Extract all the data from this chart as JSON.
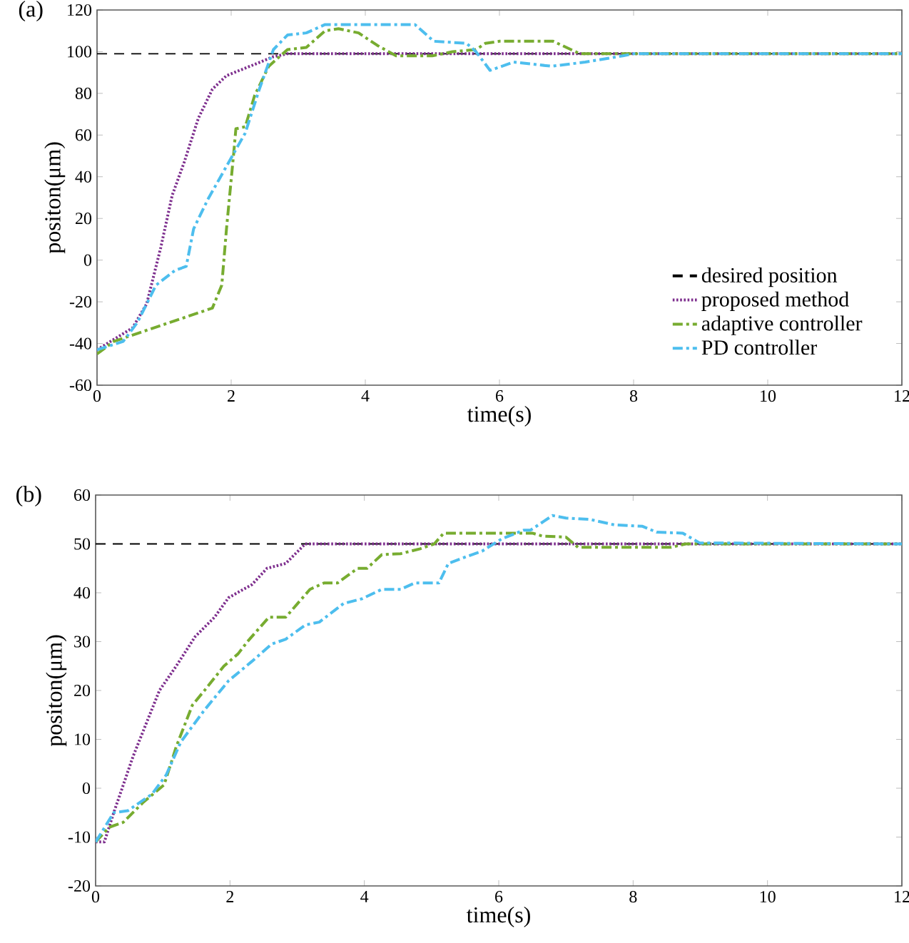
{
  "chart_data": [
    {
      "type": "line",
      "title": "(a)",
      "xlabel": "time(s)",
      "ylabel": "positon(μm)",
      "xlim": [
        0,
        12
      ],
      "ylim": [
        -60,
        120
      ],
      "xticks": [
        0,
        2,
        4,
        6,
        8,
        10,
        12
      ],
      "yticks": [
        -60,
        -40,
        -20,
        0,
        20,
        40,
        60,
        80,
        100,
        120
      ],
      "legend": "bottom right",
      "grid": false,
      "series": [
        {
          "name": "desired position",
          "color": "#000000",
          "line_style": "dashed",
          "x": [
            0,
            12
          ],
          "values": [
            99,
            99
          ]
        },
        {
          "name": "proposed method",
          "color": "#7e2f8e",
          "line_style": "dotted",
          "x": [
            0,
            0.53,
            0.74,
            0.95,
            1.12,
            1.3,
            1.51,
            1.72,
            1.93,
            2.28,
            2.63,
            2.84,
            12
          ],
          "values": [
            -43,
            -32.5,
            -21,
            6,
            31,
            47,
            68,
            82,
            88.5,
            93,
            97.6,
            99,
            99
          ]
        },
        {
          "name": "adaptive controller",
          "color": "#77ac30",
          "line_style": "dashdot",
          "x": [
            0,
            0.25,
            1.72,
            1.86,
            1.93,
            2.04,
            2.07,
            2.21,
            2.35,
            2.56,
            2.84,
            3.12,
            3.4,
            3.6,
            3.9,
            4.18,
            4.46,
            5.0,
            5.3,
            5.65,
            5.79,
            6.0,
            6.8,
            7.2,
            12
          ],
          "values": [
            -45,
            -39,
            -23,
            -12,
            15,
            52,
            63,
            64,
            79,
            93,
            101,
            102,
            110,
            111,
            109,
            103,
            98,
            98,
            100,
            101,
            104,
            105,
            105,
            99,
            99
          ]
        },
        {
          "name": "PD controller",
          "color": "#4dbeee",
          "line_style": "dashdot",
          "x": [
            0,
            0.39,
            0.6,
            0.88,
            1.16,
            1.33,
            1.44,
            1.65,
            1.93,
            2.21,
            2.42,
            2.63,
            2.84,
            3.12,
            3.4,
            4.74,
            5.02,
            5.51,
            5.65,
            5.86,
            6.21,
            6.78,
            7.28,
            7.84,
            8.0,
            12
          ],
          "values": [
            -43,
            -39,
            -30,
            -12,
            -5,
            -3,
            15,
            29,
            45,
            61,
            82,
            101,
            108,
            109,
            113,
            113,
            105,
            104,
            100,
            91,
            95,
            93,
            95,
            98,
            99,
            99
          ]
        }
      ]
    },
    {
      "type": "line",
      "title": "(b)",
      "xlabel": "time(s)",
      "ylabel": "positon(μm)",
      "xlim": [
        0,
        12
      ],
      "ylim": [
        -20,
        60
      ],
      "xticks": [
        0,
        2,
        4,
        6,
        8,
        10,
        12
      ],
      "yticks": [
        -20,
        -10,
        0,
        10,
        20,
        30,
        40,
        50,
        60
      ],
      "grid": false,
      "series": [
        {
          "color": "#000000",
          "line_style": "dashed",
          "x": [
            0,
            12
          ],
          "values": [
            50,
            50
          ]
        },
        {
          "color": "#7e2f8e",
          "line_style": "dotted",
          "x": [
            0,
            0.13,
            0.27,
            0.56,
            0.95,
            1.2,
            1.48,
            1.77,
            1.98,
            2.33,
            2.55,
            2.83,
            3.12,
            12
          ],
          "values": [
            -11,
            -11,
            -5,
            6.6,
            20,
            25,
            31,
            35,
            39,
            41.7,
            45,
            46,
            50,
            50
          ]
        },
        {
          "color": "#77ac30",
          "line_style": "dashdot",
          "x": [
            0,
            0.2,
            0.41,
            0.7,
            1.02,
            1.2,
            1.44,
            1.62,
            1.91,
            2.12,
            2.26,
            2.58,
            2.83,
            3.19,
            3.4,
            3.6,
            3.9,
            4.04,
            4.26,
            4.54,
            4.83,
            5.04,
            5.18,
            6.5,
            6.65,
            7.0,
            7.18,
            8.57,
            8.78,
            12
          ],
          "values": [
            -11,
            -8,
            -7,
            -3,
            0.7,
            8.5,
            17,
            20,
            25,
            27.5,
            30,
            35,
            35,
            40.7,
            42,
            42,
            45,
            45,
            47.8,
            48,
            49,
            50,
            52.2,
            52.2,
            51.6,
            51.4,
            49.3,
            49.3,
            50,
            50
          ]
        },
        {
          "color": "#4dbeee",
          "line_style": "dashdot",
          "x": [
            0,
            0.27,
            0.48,
            0.84,
            1.05,
            1.27,
            1.62,
            1.98,
            2.33,
            2.62,
            2.83,
            3.12,
            3.33,
            3.69,
            3.97,
            4.26,
            4.54,
            4.75,
            5.11,
            5.25,
            5.54,
            5.75,
            6.04,
            6.37,
            6.47,
            6.8,
            7.0,
            7.36,
            7.72,
            8.14,
            8.35,
            8.74,
            8.99,
            12
          ],
          "values": [
            -11,
            -5,
            -4.6,
            -1.2,
            2.7,
            9.5,
            16,
            22,
            26,
            29.5,
            30.5,
            33.4,
            34,
            37.8,
            38.8,
            40.7,
            40.7,
            42,
            42,
            46,
            47.5,
            48.5,
            51,
            52.8,
            52.8,
            55.8,
            55.3,
            55,
            53.9,
            53.6,
            52.4,
            52.2,
            50.2,
            50
          ]
        }
      ]
    }
  ]
}
